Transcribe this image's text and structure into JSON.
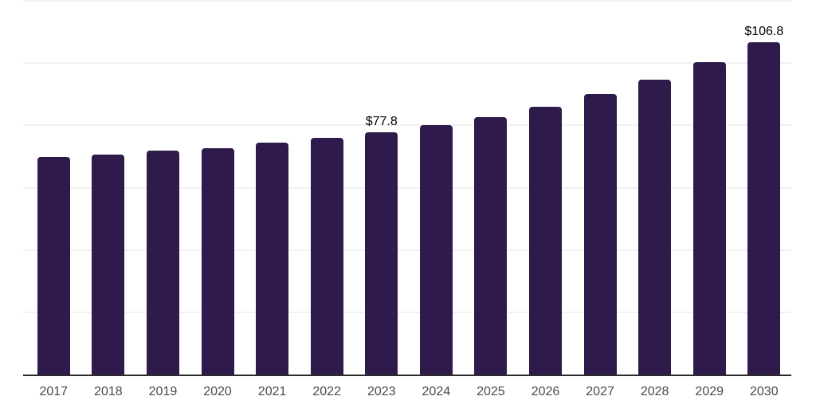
{
  "chart_data": {
    "type": "bar",
    "title": "",
    "xlabel": "",
    "ylabel": "",
    "categories": [
      "2017",
      "2018",
      "2019",
      "2020",
      "2021",
      "2022",
      "2023",
      "2024",
      "2025",
      "2026",
      "2027",
      "2028",
      "2029",
      "2030"
    ],
    "values": [
      69.8,
      70.6,
      71.9,
      72.7,
      74.4,
      76.0,
      77.8,
      80.0,
      82.6,
      85.9,
      90.0,
      94.6,
      100.2,
      106.8
    ],
    "data_labels": [
      "",
      "",
      "",
      "",
      "",
      "",
      "$77.8",
      "",
      "",
      "",
      "",
      "",
      "",
      "$106.8"
    ],
    "ylim": [
      0,
      120
    ],
    "gridline_values": [
      20,
      40,
      60,
      80,
      100,
      120
    ],
    "grid": "horizontal-only, no y-axis tick labels",
    "legend": "none",
    "colors": {
      "bar": "#2f1a4c",
      "gridline": "#f1f1f1",
      "axis_line": "#2b2b2b",
      "tick_label": "#4a4a4a",
      "value_label": "#000000",
      "background": "#ffffff"
    }
  }
}
